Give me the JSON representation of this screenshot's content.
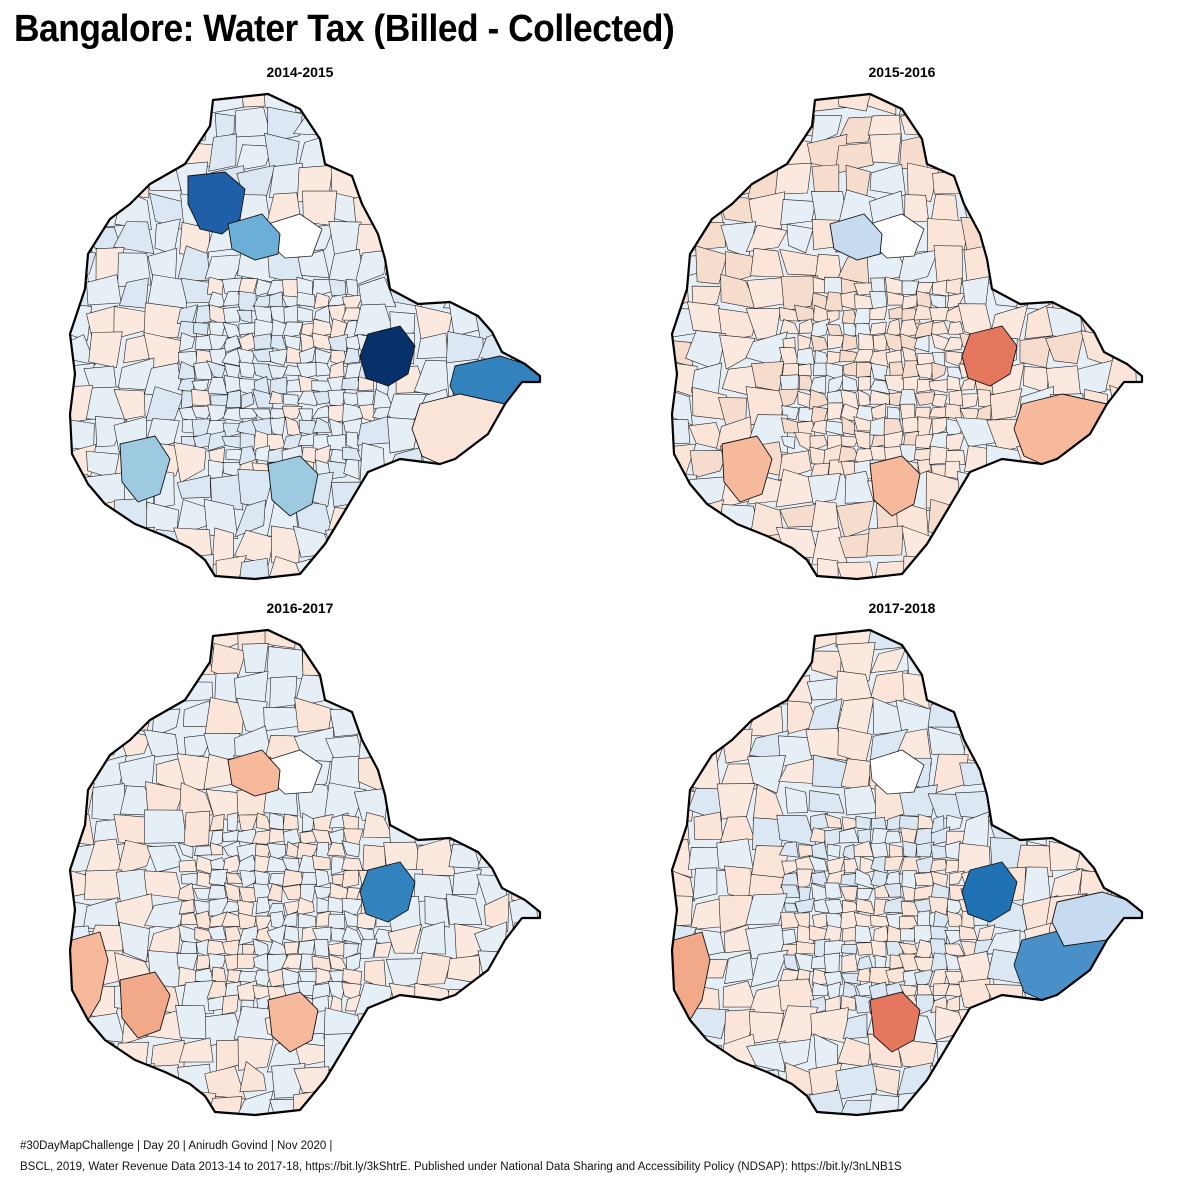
{
  "title": "Bangalore: Water Tax (Billed - Collected)",
  "colors": {
    "border": "#000000",
    "neutral": "#e6eef6",
    "blue_light": "#c6dbef",
    "blue_mid": "#6baed6",
    "blue_strong": "#3182bd",
    "blue_dark": "#08306b",
    "red_light": "#fbe4d8",
    "red_mid": "#f7b99b",
    "red_strong": "#e5775e",
    "no_data": "#ffffff"
  },
  "panels": [
    {
      "year": "2014-2015",
      "highlights": [
        {
          "region": "north-west",
          "color": "#1f5fa8"
        },
        {
          "region": "north-central",
          "color": "#6baed6"
        },
        {
          "region": "east-center",
          "color": "#08306b"
        },
        {
          "region": "far-east",
          "color": "#3182bd"
        },
        {
          "region": "south-west",
          "color": "#9ecae1"
        },
        {
          "region": "south-central",
          "color": "#9ecae1"
        },
        {
          "region": "south-east",
          "color": "#fbe4d8"
        }
      ]
    },
    {
      "year": "2015-2016",
      "highlights": [
        {
          "region": "south-east",
          "color": "#f7b99b"
        },
        {
          "region": "east-center",
          "color": "#e5775e"
        },
        {
          "region": "south-west",
          "color": "#f7b99b"
        },
        {
          "region": "south-central",
          "color": "#f7b99b"
        },
        {
          "region": "north-central",
          "color": "#c6dbef"
        }
      ]
    },
    {
      "year": "2016-2017",
      "highlights": [
        {
          "region": "west-edge",
          "color": "#f7b99b"
        },
        {
          "region": "north-central",
          "color": "#f7b99b"
        },
        {
          "region": "south-west",
          "color": "#f2a98a"
        },
        {
          "region": "south-central",
          "color": "#f7b99b"
        },
        {
          "region": "east-center",
          "color": "#3182bd"
        }
      ]
    },
    {
      "year": "2017-2018",
      "highlights": [
        {
          "region": "south-east",
          "color": "#4a90c8"
        },
        {
          "region": "far-east",
          "color": "#c6dbef"
        },
        {
          "region": "east-center",
          "color": "#2171b5"
        },
        {
          "region": "south-central",
          "color": "#e5775e"
        },
        {
          "region": "west-edge",
          "color": "#f2a98a"
        }
      ]
    }
  ],
  "footer": {
    "line1": "#30DayMapChallenge | Day 20 | Anirudh Govind | Nov 2020 |",
    "line2": "BSCL, 2019, Water Revenue Data 2013-14 to 2017-18, https://bit.ly/3kShtrE. Published under National Data Sharing and Accessibility Policy (NDSAP): https://bit.ly/3nLNB1S"
  }
}
